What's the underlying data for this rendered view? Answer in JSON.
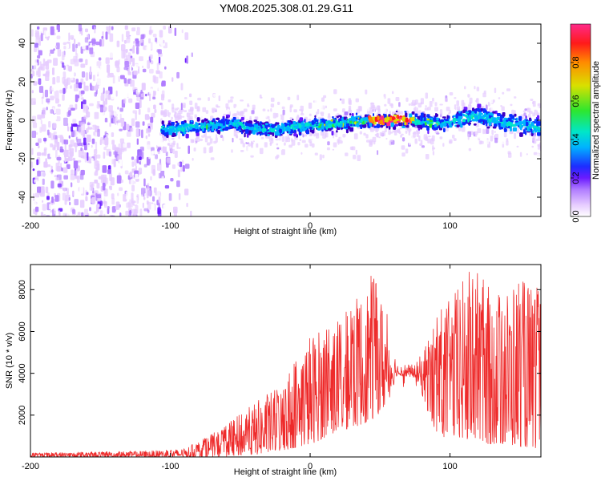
{
  "title": "YM08.2025.308.01.29.G11",
  "colors": {
    "background": "#ffffff",
    "axis": "#000000",
    "snr_line": "#ee2b2b",
    "colormap": [
      "#ffffff",
      "#e6ccff",
      "#b07cff",
      "#6a1bff",
      "#3d00c4",
      "#0b2dff",
      "#00b3ff",
      "#00e6c8",
      "#2ee62e",
      "#d9e000",
      "#ff8c00",
      "#ff1a1a",
      "#ff2a8a"
    ]
  },
  "chart_data": [
    {
      "type": "heatmap",
      "title": "",
      "xlabel": "Height of straight line (km)",
      "ylabel": "Frequency (Hz)",
      "xlim": [
        -200,
        165
      ],
      "ylim": [
        -50,
        50
      ],
      "xticks": [
        -200,
        -100,
        0,
        100
      ],
      "yticks": [
        -40,
        -20,
        0,
        20,
        40
      ],
      "noise_region_x": [
        -200,
        -105
      ],
      "signal_region_x": [
        -107,
        165
      ],
      "signal_center_frequency": [
        {
          "x": -105,
          "y": -4
        },
        {
          "x": -90,
          "y": -3
        },
        {
          "x": -70,
          "y": -2
        },
        {
          "x": -55,
          "y": -1
        },
        {
          "x": -45,
          "y": -3
        },
        {
          "x": -30,
          "y": -4
        },
        {
          "x": -15,
          "y": -3
        },
        {
          "x": 0,
          "y": -2
        },
        {
          "x": 15,
          "y": -1
        },
        {
          "x": 30,
          "y": 0
        },
        {
          "x": 45,
          "y": 1
        },
        {
          "x": 60,
          "y": 1
        },
        {
          "x": 70,
          "y": 1
        },
        {
          "x": 80,
          "y": 0
        },
        {
          "x": 95,
          "y": -1
        },
        {
          "x": 108,
          "y": 2
        },
        {
          "x": 120,
          "y": 3
        },
        {
          "x": 135,
          "y": 0
        },
        {
          "x": 150,
          "y": -2
        },
        {
          "x": 165,
          "y": -3
        }
      ],
      "colorbar": {
        "label": "Normalized spectral amplitude",
        "range": [
          0,
          1
        ],
        "ticks": [
          "0.0",
          "0.2",
          "0.4",
          "0.6",
          "0.8"
        ]
      }
    },
    {
      "type": "line",
      "title": "",
      "xlabel": "Height of straight line (km)",
      "ylabel": "SNR (10 * v/v)",
      "xlim": [
        -200,
        165
      ],
      "ylim": [
        0,
        9200
      ],
      "xticks": [
        -200,
        -100,
        0,
        100
      ],
      "yticks": [
        2000,
        4000,
        6000,
        8000
      ],
      "envelope": [
        {
          "x": -200,
          "base": 0,
          "peak": 200
        },
        {
          "x": -110,
          "base": 0,
          "peak": 300
        },
        {
          "x": -90,
          "base": 0,
          "peak": 400
        },
        {
          "x": -70,
          "base": 0,
          "peak": 1100
        },
        {
          "x": -55,
          "base": 50,
          "peak": 1800
        },
        {
          "x": -40,
          "base": 100,
          "peak": 2600
        },
        {
          "x": -20,
          "base": 300,
          "peak": 3500
        },
        {
          "x": 0,
          "base": 600,
          "peak": 6000
        },
        {
          "x": 20,
          "base": 1200,
          "peak": 6500
        },
        {
          "x": 35,
          "base": 1500,
          "peak": 7800
        },
        {
          "x": 45,
          "base": 1800,
          "peak": 8800
        },
        {
          "x": 55,
          "base": 2500,
          "peak": 7000
        },
        {
          "x": 62,
          "base": 3900,
          "peak": 4500
        },
        {
          "x": 75,
          "base": 3800,
          "peak": 4400
        },
        {
          "x": 80,
          "base": 3000,
          "peak": 5000
        },
        {
          "x": 90,
          "base": 1000,
          "peak": 7000
        },
        {
          "x": 100,
          "base": 900,
          "peak": 7500
        },
        {
          "x": 115,
          "base": 700,
          "peak": 9200
        },
        {
          "x": 130,
          "base": 600,
          "peak": 8000
        },
        {
          "x": 150,
          "base": 500,
          "peak": 8500
        },
        {
          "x": 165,
          "base": 400,
          "peak": 8000
        }
      ]
    }
  ]
}
